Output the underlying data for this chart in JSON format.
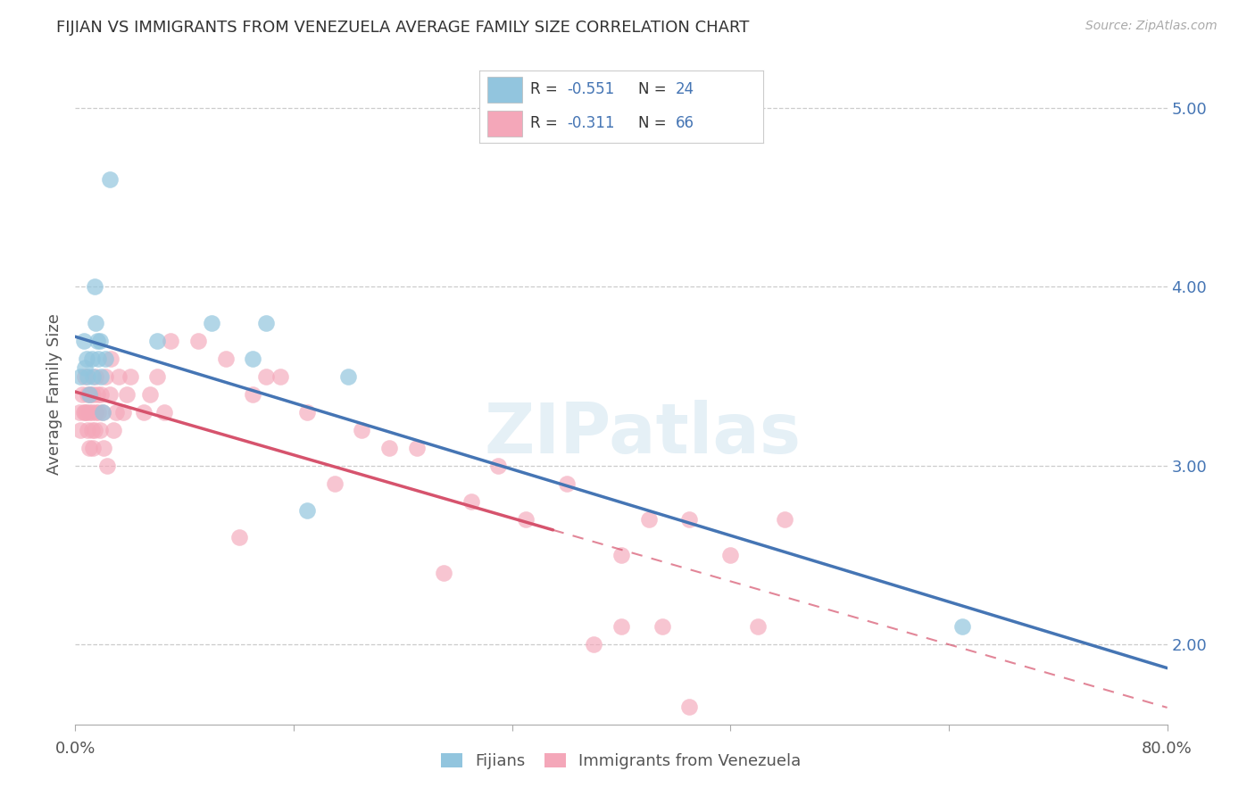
{
  "title": "FIJIAN VS IMMIGRANTS FROM VENEZUELA AVERAGE FAMILY SIZE CORRELATION CHART",
  "source": "Source: ZipAtlas.com",
  "ylabel": "Average Family Size",
  "right_yticks": [
    2.0,
    3.0,
    4.0,
    5.0
  ],
  "xlim": [
    0.0,
    0.8
  ],
  "ylim": [
    1.55,
    5.25
  ],
  "watermark": "ZIPatlas",
  "legend_fijians_R": "-0.551",
  "legend_fijians_N": "24",
  "legend_venezuela_R": "-0.311",
  "legend_venezuela_N": "66",
  "color_fijian": "#92c5de",
  "color_venezuela": "#f4a7b9",
  "color_fijian_line": "#4575b4",
  "color_venezuela_line": "#d6536d",
  "fijian_x": [
    0.004,
    0.006,
    0.007,
    0.008,
    0.009,
    0.01,
    0.012,
    0.013,
    0.014,
    0.015,
    0.016,
    0.017,
    0.018,
    0.019,
    0.02,
    0.022,
    0.025,
    0.06,
    0.1,
    0.13,
    0.14,
    0.17,
    0.2,
    0.65
  ],
  "fijian_y": [
    3.5,
    3.7,
    3.55,
    3.6,
    3.5,
    3.4,
    3.6,
    3.5,
    4.0,
    3.8,
    3.7,
    3.6,
    3.7,
    3.5,
    3.3,
    3.6,
    4.6,
    3.7,
    3.8,
    3.6,
    3.8,
    2.75,
    3.5,
    2.1
  ],
  "venezuela_x": [
    0.003,
    0.004,
    0.005,
    0.006,
    0.007,
    0.007,
    0.008,
    0.009,
    0.009,
    0.01,
    0.01,
    0.011,
    0.012,
    0.012,
    0.013,
    0.013,
    0.014,
    0.015,
    0.015,
    0.016,
    0.017,
    0.018,
    0.019,
    0.02,
    0.021,
    0.022,
    0.023,
    0.025,
    0.026,
    0.028,
    0.03,
    0.032,
    0.035,
    0.038,
    0.04,
    0.05,
    0.055,
    0.06,
    0.065,
    0.07,
    0.09,
    0.11,
    0.12,
    0.13,
    0.14,
    0.15,
    0.17,
    0.19,
    0.21,
    0.23,
    0.25,
    0.27,
    0.29,
    0.31,
    0.33,
    0.36,
    0.4,
    0.42,
    0.45,
    0.48,
    0.5,
    0.52,
    0.38,
    0.4,
    0.43,
    0.45
  ],
  "venezuela_y": [
    3.3,
    3.2,
    3.4,
    3.3,
    3.3,
    3.5,
    3.3,
    3.4,
    3.2,
    3.3,
    3.1,
    3.4,
    3.2,
    3.3,
    3.4,
    3.1,
    3.2,
    3.5,
    3.3,
    3.4,
    3.3,
    3.2,
    3.4,
    3.3,
    3.1,
    3.5,
    3.0,
    3.4,
    3.6,
    3.2,
    3.3,
    3.5,
    3.3,
    3.4,
    3.5,
    3.3,
    3.4,
    3.5,
    3.3,
    3.7,
    3.7,
    3.6,
    2.6,
    3.4,
    3.5,
    3.5,
    3.3,
    2.9,
    3.2,
    3.1,
    3.1,
    2.4,
    2.8,
    3.0,
    2.7,
    2.9,
    2.5,
    2.7,
    2.7,
    2.5,
    2.1,
    2.7,
    2.0,
    2.1,
    2.1,
    1.65
  ]
}
